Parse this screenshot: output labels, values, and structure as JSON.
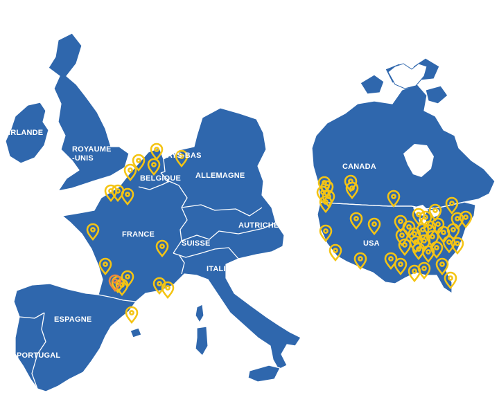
{
  "map": {
    "colors": {
      "land": "#2f67ad",
      "borders": "#ffffff",
      "pin": "#f4c414",
      "pin_highlight": "#f08a3c"
    },
    "countries": {
      "irlande": "IRLANDE",
      "royaume_unis_line1": "ROYAUME",
      "royaume_unis_line2": "-UNIS",
      "pays_bas": "PAYS-BAS",
      "belgique": "BELGIQUE",
      "allemagne": "ALLEMAGNE",
      "france": "FRANCE",
      "suisse": "SUISSE",
      "autriche": "AUTRICHE",
      "italie": "ITALIE",
      "espagne": "ESPAGNE",
      "portugal": "PORTUGAL",
      "canada": "CANADA",
      "usa": "USA"
    },
    "pin_icon": "location-marker-icon"
  }
}
